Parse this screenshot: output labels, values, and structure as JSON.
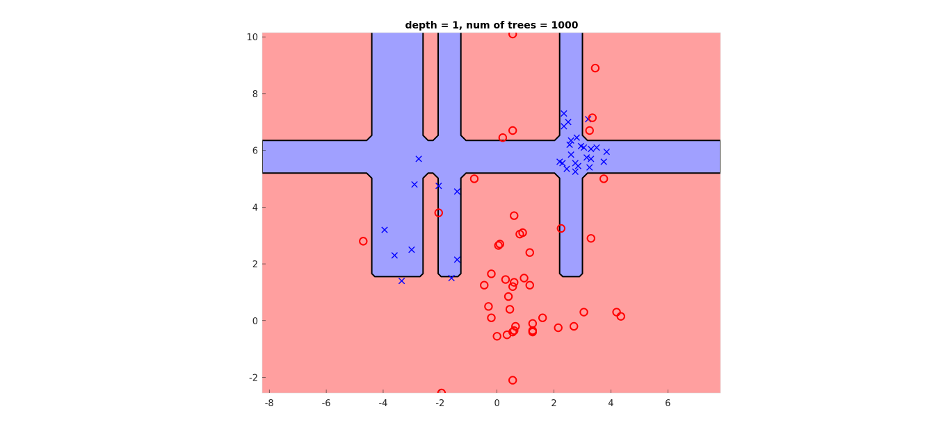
{
  "chart_data": {
    "type": "scatter",
    "title": "depth = 1, num of trees = 1000",
    "xlabel": "",
    "ylabel": "",
    "xlim": [
      -8.25,
      7.85
    ],
    "ylim": [
      -2.55,
      10.15
    ],
    "x_ticks": [
      -8,
      -6,
      -4,
      -2,
      0,
      2,
      4,
      6
    ],
    "x_tick_labels": [
      "-8",
      "-6",
      "-4",
      "-2",
      "0",
      "2",
      "4",
      "6"
    ],
    "y_ticks": [
      -2,
      0,
      2,
      4,
      6,
      8,
      10
    ],
    "y_tick_labels": [
      "-2",
      "0",
      "2",
      "4",
      "6",
      "8",
      "10"
    ],
    "grid": false,
    "legend": "none",
    "colors": {
      "background_region": "#ff9f9f",
      "decision_region": "#a0a0ff",
      "boundary": "#000000",
      "series_x": "#0000ff",
      "series_o": "#ff0000"
    },
    "regions": {
      "horizontal_band": {
        "y": [
          5.2,
          6.35
        ]
      },
      "vertical_bands": [
        {
          "x": [
            -4.4,
            -2.6
          ]
        },
        {
          "x": [
            -2.07,
            -1.27
          ]
        },
        {
          "x": [
            2.2,
            3.0
          ]
        }
      ],
      "bands_bottom": 1.55,
      "bevel": 0.18
    },
    "series": [
      {
        "marker": "x",
        "points": [
          [
            2.35,
            7.3
          ],
          [
            2.5,
            7.0
          ],
          [
            2.35,
            6.85
          ],
          [
            3.2,
            7.1
          ],
          [
            2.8,
            6.45
          ],
          [
            2.6,
            6.35
          ],
          [
            2.55,
            6.2
          ],
          [
            2.95,
            6.15
          ],
          [
            3.05,
            6.1
          ],
          [
            3.3,
            6.05
          ],
          [
            3.5,
            6.1
          ],
          [
            3.85,
            5.95
          ],
          [
            2.6,
            5.85
          ],
          [
            3.15,
            5.75
          ],
          [
            3.3,
            5.7
          ],
          [
            2.2,
            5.6
          ],
          [
            2.3,
            5.55
          ],
          [
            2.75,
            5.55
          ],
          [
            2.85,
            5.45
          ],
          [
            3.25,
            5.4
          ],
          [
            2.45,
            5.35
          ],
          [
            2.75,
            5.25
          ],
          [
            3.75,
            5.6
          ],
          [
            -2.75,
            5.7
          ],
          [
            -2.9,
            4.8
          ],
          [
            -2.05,
            4.75
          ],
          [
            -1.4,
            4.55
          ],
          [
            -3.95,
            3.2
          ],
          [
            -3.6,
            2.3
          ],
          [
            -3.0,
            2.5
          ],
          [
            -3.35,
            1.4
          ],
          [
            -1.4,
            2.15
          ],
          [
            -1.6,
            1.5
          ]
        ]
      },
      {
        "marker": "o",
        "points": [
          [
            0.55,
            10.1
          ],
          [
            3.45,
            8.9
          ],
          [
            3.35,
            7.15
          ],
          [
            0.55,
            6.7
          ],
          [
            0.2,
            6.45
          ],
          [
            3.25,
            6.7
          ],
          [
            -0.8,
            5.0
          ],
          [
            3.75,
            5.0
          ],
          [
            -2.05,
            3.8
          ],
          [
            0.6,
            3.7
          ],
          [
            2.25,
            3.25
          ],
          [
            3.3,
            2.9
          ],
          [
            0.8,
            3.05
          ],
          [
            0.9,
            3.1
          ],
          [
            0.05,
            2.65
          ],
          [
            0.1,
            2.7
          ],
          [
            1.15,
            2.4
          ],
          [
            -4.7,
            2.8
          ],
          [
            -0.2,
            1.65
          ],
          [
            0.3,
            1.45
          ],
          [
            0.95,
            1.5
          ],
          [
            0.6,
            1.35
          ],
          [
            -0.45,
            1.25
          ],
          [
            0.55,
            1.2
          ],
          [
            1.15,
            1.25
          ],
          [
            0.4,
            0.85
          ],
          [
            -0.3,
            0.5
          ],
          [
            0.45,
            0.4
          ],
          [
            3.05,
            0.3
          ],
          [
            4.2,
            0.3
          ],
          [
            4.35,
            0.15
          ],
          [
            -0.2,
            0.1
          ],
          [
            1.6,
            0.1
          ],
          [
            1.25,
            -0.1
          ],
          [
            0.65,
            -0.2
          ],
          [
            2.7,
            -0.2
          ],
          [
            2.15,
            -0.25
          ],
          [
            0.6,
            -0.35
          ],
          [
            1.25,
            -0.35
          ],
          [
            1.25,
            -0.4
          ],
          [
            0.55,
            -0.4
          ],
          [
            0.35,
            -0.5
          ],
          [
            0.0,
            -0.55
          ],
          [
            0.55,
            -2.1
          ],
          [
            -1.95,
            -2.55
          ]
        ]
      }
    ]
  }
}
